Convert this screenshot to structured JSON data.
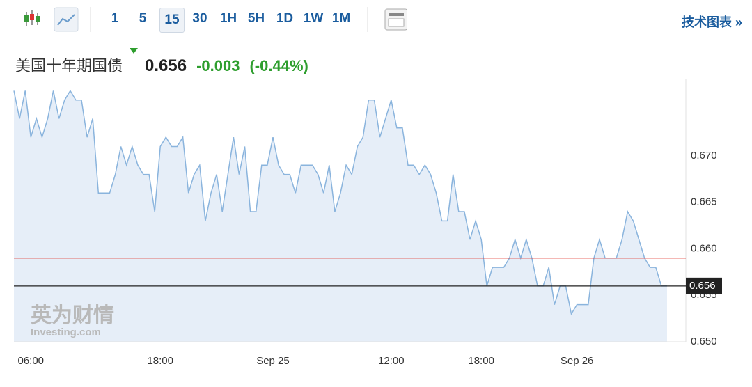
{
  "toolbar": {
    "intervals": [
      "1",
      "5",
      "15",
      "30",
      "1H",
      "5H",
      "1D",
      "1W",
      "1M"
    ],
    "active_interval": 2,
    "link": "技术图表 »"
  },
  "chart_data": {
    "type": "line",
    "title": "美国十年期国债",
    "price": "0.656",
    "change": "-0.003",
    "change_percent": "(-0.44%)",
    "watermark": [
      "英为财情",
      "Investing.com"
    ],
    "categories": [
      null,
      null,
      null,
      "06:00",
      null,
      null,
      null,
      null,
      null,
      null,
      null,
      null,
      null,
      null,
      null,
      null,
      null,
      null,
      null,
      null,
      null,
      null,
      null,
      null,
      null,
      null,
      "18:00",
      null,
      null,
      null,
      null,
      null,
      null,
      null,
      null,
      null,
      null,
      null,
      null,
      null,
      null,
      null,
      null,
      null,
      null,
      null,
      "Sep 25",
      null,
      null,
      null,
      null,
      null,
      null,
      null,
      null,
      null,
      null,
      null,
      null,
      null,
      null,
      null,
      null,
      null,
      null,
      null,
      null,
      "12:00",
      null,
      null,
      null,
      null,
      null,
      null,
      null,
      null,
      null,
      null,
      null,
      null,
      null,
      null,
      null,
      "18:00",
      null,
      null,
      null,
      null,
      null,
      null,
      null,
      null,
      null,
      null,
      null,
      null,
      null,
      null,
      null,
      null,
      "Sep 26",
      null,
      null,
      null,
      null,
      null,
      null,
      null,
      null,
      null,
      null,
      null,
      null,
      null,
      null,
      null,
      null
    ],
    "series": [
      {
        "name": "美国十年期国债",
        "color": "#8ab4dd",
        "fill": "#e6eef8",
        "values": [
          0.677,
          0.674,
          0.677,
          0.672,
          0.674,
          0.672,
          0.674,
          0.677,
          0.674,
          0.676,
          0.677,
          0.676,
          0.676,
          0.672,
          0.674,
          0.666,
          0.666,
          0.666,
          0.668,
          0.671,
          0.669,
          0.671,
          0.669,
          0.668,
          0.668,
          0.664,
          0.671,
          0.672,
          0.671,
          0.671,
          0.672,
          0.666,
          0.668,
          0.669,
          0.663,
          0.666,
          0.668,
          0.664,
          0.668,
          0.672,
          0.668,
          0.671,
          0.664,
          0.664,
          0.669,
          0.669,
          0.672,
          0.669,
          0.668,
          0.668,
          0.666,
          0.669,
          0.669,
          0.669,
          0.668,
          0.666,
          0.669,
          0.664,
          0.666,
          0.669,
          0.668,
          0.671,
          0.672,
          0.676,
          0.676,
          0.672,
          0.674,
          0.676,
          0.673,
          0.673,
          0.669,
          0.669,
          0.668,
          0.669,
          0.668,
          0.666,
          0.663,
          0.663,
          0.668,
          0.664,
          0.664,
          0.661,
          0.663,
          0.661,
          0.656,
          0.658,
          0.658,
          0.658,
          0.659,
          0.661,
          0.659,
          0.661,
          0.659,
          0.656,
          0.656,
          0.658,
          0.654,
          0.656,
          0.656,
          0.653,
          0.654,
          0.654,
          0.654,
          0.659,
          0.661,
          0.659,
          0.659,
          0.659,
          0.661,
          0.664,
          0.663,
          0.661,
          0.659,
          0.658,
          0.658,
          0.656,
          0.656
        ]
      }
    ],
    "reference_line": {
      "value": 0.659,
      "color": "#e0403a"
    },
    "ylim": [
      0.65,
      0.6783
    ],
    "yticks": [
      {
        "value": 0.65,
        "label": "0.650"
      },
      {
        "value": 0.655,
        "label": "0.655"
      },
      {
        "value": 0.66,
        "label": "0.660"
      },
      {
        "value": 0.665,
        "label": "0.665"
      },
      {
        "value": 0.67,
        "label": "0.670"
      }
    ]
  }
}
